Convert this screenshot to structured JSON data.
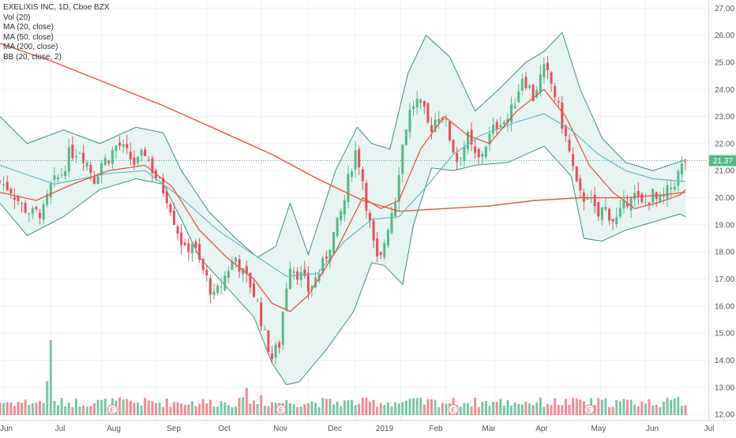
{
  "legend": {
    "title": "EXELIXIS INC, 1D, Cboe BZX",
    "vol": "Vol (20)",
    "ma20": "MA (20, close)",
    "ma50": "MA (50, close)",
    "ma200": "MA (200, close)",
    "bb": "BB (20, close, 2)"
  },
  "colors": {
    "up": "#53b987",
    "down": "#eb4d5c",
    "vol_up": "#76c7a4",
    "vol_down": "#f08a92",
    "ma20": "#e8533f",
    "ma50": "#5fbcc4",
    "ma200": "#e8533f",
    "bb_line": "#3b8f85",
    "bb_fill": "#e6f4f2",
    "price_line": "#4aa3a8",
    "price_label_bg": "#53b987"
  },
  "chart_data": {
    "type": "candlestick",
    "symbol": "EXELIXIS INC",
    "interval": "1D",
    "exchange": "Cboe BZX",
    "last_price": "21.37",
    "ylim": [
      11.8,
      27.3
    ],
    "y_ticks": [
      "27.00",
      "26.00",
      "25.00",
      "24.00",
      "23.00",
      "22.00",
      "21.00",
      "20.00",
      "19.00",
      "18.00",
      "17.00",
      "16.00",
      "15.00",
      "14.00",
      "13.00",
      "12.00"
    ],
    "x_ticks": [
      "Jun",
      "Jul",
      "Aug",
      "Sep",
      "Oct",
      "Nov",
      "Dec",
      "2019",
      "Feb",
      "Mar",
      "Apr",
      "May",
      "Jun",
      "Jul"
    ],
    "earnings_markers": [
      "E",
      "E",
      "E",
      "E"
    ],
    "close_path": [
      [
        0,
        20.6
      ],
      [
        6,
        20.3
      ],
      [
        12,
        19.7
      ],
      [
        18,
        19.4
      ],
      [
        24,
        19.5
      ],
      [
        28,
        20.4
      ],
      [
        34,
        20.9
      ],
      [
        38,
        21.6
      ],
      [
        44,
        21.8
      ],
      [
        48,
        21.3
      ],
      [
        52,
        20.7
      ],
      [
        56,
        21.3
      ],
      [
        60,
        21.5
      ],
      [
        65,
        22.0
      ],
      [
        70,
        21.6
      ],
      [
        75,
        21.2
      ],
      [
        80,
        21.7
      ],
      [
        85,
        20.9
      ],
      [
        90,
        20.3
      ],
      [
        93,
        19.9
      ],
      [
        96,
        19.2
      ],
      [
        100,
        18.4
      ],
      [
        102,
        18.0
      ],
      [
        106,
        18.4
      ],
      [
        110,
        17.6
      ],
      [
        114,
        17.0
      ],
      [
        118,
        16.3
      ],
      [
        122,
        16.8
      ],
      [
        126,
        17.4
      ],
      [
        130,
        17.8
      ],
      [
        134,
        17.2
      ],
      [
        138,
        16.8
      ],
      [
        142,
        16.1
      ],
      [
        146,
        14.9
      ],
      [
        150,
        14.1
      ],
      [
        154,
        14.6
      ],
      [
        157,
        16.4
      ],
      [
        160,
        17.6
      ],
      [
        163,
        17.3
      ],
      [
        166,
        17.1
      ],
      [
        170,
        16.6
      ],
      [
        174,
        17.0
      ],
      [
        178,
        17.5
      ],
      [
        182,
        18.3
      ],
      [
        186,
        19.0
      ],
      [
        190,
        19.9
      ],
      [
        193,
        21.0
      ],
      [
        196,
        21.7
      ],
      [
        199,
        21.1
      ],
      [
        202,
        19.8
      ],
      [
        205,
        18.6
      ],
      [
        207,
        17.9
      ],
      [
        209,
        17.4
      ],
      [
        212,
        18.4
      ],
      [
        215,
        19.3
      ],
      [
        218,
        20.0
      ],
      [
        221,
        21.6
      ],
      [
        225,
        23.0
      ],
      [
        229,
        23.6
      ],
      [
        233,
        23.3
      ],
      [
        237,
        22.5
      ],
      [
        240,
        22.9
      ],
      [
        243,
        23.2
      ],
      [
        246,
        22.7
      ],
      [
        249,
        22.0
      ],
      [
        252,
        21.4
      ],
      [
        255,
        21.8
      ],
      [
        258,
        22.2
      ],
      [
        261,
        21.6
      ],
      [
        264,
        21.4
      ],
      [
        268,
        22.0
      ],
      [
        272,
        22.5
      ],
      [
        276,
        22.9
      ],
      [
        279,
        22.8
      ],
      [
        282,
        23.2
      ],
      [
        285,
        23.8
      ],
      [
        288,
        24.5
      ],
      [
        291,
        24.2
      ],
      [
        294,
        23.7
      ],
      [
        297,
        24.3
      ],
      [
        300,
        24.7
      ],
      [
        303,
        24.4
      ],
      [
        306,
        23.8
      ],
      [
        309,
        23.0
      ],
      [
        312,
        22.2
      ],
      [
        315,
        21.4
      ],
      [
        318,
        20.4
      ],
      [
        321,
        19.9
      ],
      [
        324,
        20.2
      ],
      [
        327,
        19.6
      ],
      [
        330,
        19.3
      ],
      [
        333,
        19.7
      ],
      [
        336,
        19.4
      ],
      [
        339,
        19.1
      ],
      [
        342,
        19.4
      ],
      [
        345,
        19.8
      ],
      [
        348,
        20.2
      ],
      [
        351,
        20.0
      ],
      [
        354,
        19.7
      ],
      [
        357,
        19.9
      ],
      [
        360,
        20.1
      ],
      [
        363,
        19.8
      ],
      [
        366,
        20.0
      ],
      [
        369,
        20.3
      ],
      [
        372,
        20.6
      ],
      [
        375,
        21.0
      ],
      [
        378,
        21.4
      ]
    ],
    "ma20": [
      [
        0,
        20.2
      ],
      [
        20,
        19.9
      ],
      [
        40,
        20.5
      ],
      [
        60,
        21.0
      ],
      [
        80,
        21.2
      ],
      [
        95,
        20.4
      ],
      [
        110,
        18.8
      ],
      [
        125,
        17.8
      ],
      [
        140,
        17.0
      ],
      [
        150,
        16.1
      ],
      [
        160,
        15.8
      ],
      [
        170,
        16.4
      ],
      [
        185,
        18.0
      ],
      [
        200,
        20.0
      ],
      [
        210,
        19.6
      ],
      [
        220,
        19.9
      ],
      [
        232,
        21.8
      ],
      [
        245,
        23.0
      ],
      [
        258,
        22.3
      ],
      [
        270,
        22.0
      ],
      [
        285,
        23.2
      ],
      [
        300,
        24.0
      ],
      [
        312,
        23.0
      ],
      [
        325,
        21.2
      ],
      [
        338,
        20.2
      ],
      [
        350,
        19.6
      ],
      [
        362,
        19.8
      ],
      [
        375,
        20.1
      ],
      [
        378,
        20.3
      ]
    ],
    "ma50": [
      [
        0,
        21.2
      ],
      [
        30,
        20.5
      ],
      [
        60,
        20.9
      ],
      [
        80,
        21.0
      ],
      [
        100,
        20.0
      ],
      [
        120,
        18.8
      ],
      [
        140,
        17.9
      ],
      [
        158,
        17.1
      ],
      [
        175,
        17.2
      ],
      [
        190,
        18.4
      ],
      [
        205,
        19.2
      ],
      [
        220,
        19.3
      ],
      [
        235,
        20.4
      ],
      [
        250,
        21.6
      ],
      [
        265,
        22.3
      ],
      [
        285,
        22.8
      ],
      [
        300,
        23.1
      ],
      [
        315,
        22.5
      ],
      [
        330,
        21.6
      ],
      [
        345,
        21.0
      ],
      [
        360,
        20.7
      ],
      [
        378,
        20.6
      ]
    ],
    "ma200": [
      [
        0,
        25.7
      ],
      [
        30,
        25.0
      ],
      [
        60,
        24.2
      ],
      [
        90,
        23.4
      ],
      [
        120,
        22.5
      ],
      [
        150,
        21.6
      ],
      [
        175,
        20.7
      ],
      [
        200,
        19.9
      ],
      [
        220,
        19.5
      ],
      [
        245,
        19.6
      ],
      [
        270,
        19.7
      ],
      [
        295,
        19.9
      ],
      [
        320,
        20.0
      ],
      [
        345,
        20.0
      ],
      [
        365,
        20.1
      ],
      [
        378,
        20.2
      ]
    ],
    "bb_upper": [
      [
        0,
        23.0
      ],
      [
        15,
        22.0
      ],
      [
        35,
        22.5
      ],
      [
        55,
        22.0
      ],
      [
        75,
        22.6
      ],
      [
        90,
        22.4
      ],
      [
        100,
        21.0
      ],
      [
        115,
        19.5
      ],
      [
        130,
        18.5
      ],
      [
        142,
        17.8
      ],
      [
        152,
        18.2
      ],
      [
        160,
        19.8
      ],
      [
        170,
        17.9
      ],
      [
        185,
        21.0
      ],
      [
        197,
        22.6
      ],
      [
        205,
        22.0
      ],
      [
        215,
        21.8
      ],
      [
        225,
        24.6
      ],
      [
        235,
        26.0
      ],
      [
        248,
        25.2
      ],
      [
        262,
        23.2
      ],
      [
        275,
        24.0
      ],
      [
        290,
        25.0
      ],
      [
        300,
        25.4
      ],
      [
        310,
        26.1
      ],
      [
        320,
        24.0
      ],
      [
        332,
        22.2
      ],
      [
        345,
        21.3
      ],
      [
        360,
        21.0
      ],
      [
        378,
        21.4
      ]
    ],
    "bb_lower": [
      [
        0,
        19.8
      ],
      [
        15,
        18.6
      ],
      [
        35,
        19.3
      ],
      [
        55,
        20.3
      ],
      [
        75,
        20.7
      ],
      [
        90,
        20.5
      ],
      [
        100,
        19.2
      ],
      [
        110,
        17.8
      ],
      [
        125,
        16.7
      ],
      [
        140,
        15.6
      ],
      [
        150,
        13.9
      ],
      [
        158,
        13.1
      ],
      [
        165,
        13.2
      ],
      [
        180,
        14.4
      ],
      [
        195,
        15.8
      ],
      [
        205,
        17.6
      ],
      [
        212,
        17.5
      ],
      [
        222,
        16.8
      ],
      [
        228,
        19.0
      ],
      [
        238,
        21.1
      ],
      [
        250,
        21.0
      ],
      [
        262,
        21.2
      ],
      [
        280,
        21.3
      ],
      [
        300,
        21.9
      ],
      [
        315,
        20.8
      ],
      [
        322,
        18.5
      ],
      [
        332,
        18.4
      ],
      [
        345,
        18.8
      ],
      [
        360,
        19.1
      ],
      [
        375,
        19.4
      ],
      [
        378,
        19.3
      ]
    ],
    "volume_spikes": [
      [
        26,
        2.8
      ],
      [
        28,
        6.2
      ],
      [
        136,
        1.9
      ],
      [
        144,
        1.4
      ],
      [
        230,
        1.2
      ],
      [
        320,
        1.1
      ],
      [
        374,
        1.3
      ]
    ],
    "volume_baseline": 0.55,
    "volume_max": 6.2
  }
}
